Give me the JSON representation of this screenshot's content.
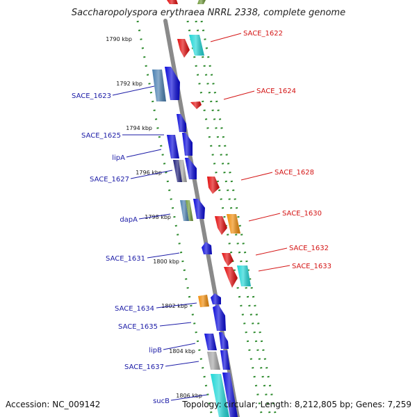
{
  "title": "Saccharopolyspora erythraea NRRL 2338, complete genome",
  "footer": {
    "accession": "Accession: NC_009142",
    "summary": "Topology: circular; Length: 8,212,805 bp; Genes: 7,259"
  },
  "ticks": [
    {
      "label": "1790 kbp"
    },
    {
      "label": "1792 kbp"
    },
    {
      "label": "1794 kbp"
    },
    {
      "label": "1796 kbp"
    },
    {
      "label": "1798 kbp"
    },
    {
      "label": "1800 kbp"
    },
    {
      "label": "1802 kbp"
    },
    {
      "label": "1804 kbp"
    },
    {
      "label": "1806 kbp"
    }
  ],
  "reverse_labels": [
    {
      "name": "SACE_1623"
    },
    {
      "name": "SACE_1625"
    },
    {
      "name": "lipA"
    },
    {
      "name": "SACE_1627"
    },
    {
      "name": "dapA"
    },
    {
      "name": "SACE_1631"
    },
    {
      "name": "SACE_1634"
    },
    {
      "name": "SACE_1635"
    },
    {
      "name": "lipB"
    },
    {
      "name": "SACE_1637"
    },
    {
      "name": "sucB"
    }
  ],
  "forward_labels": [
    {
      "name": "SACE_1622"
    },
    {
      "name": "SACE_1624"
    },
    {
      "name": "SACE_1628"
    },
    {
      "name": "SACE_1630"
    },
    {
      "name": "SACE_1632"
    },
    {
      "name": "SACE_1633"
    }
  ],
  "colors": {
    "blue": "#0b0bd9",
    "red": "#e20d0d",
    "cyan": "#1fd6d6",
    "orange": "#f08c0a",
    "steel": "#4a7fb0",
    "navy": "#1c1c7a",
    "olive": "#6f9a3a",
    "gray": "#a6a6a6",
    "backbone": "#8a8a8a",
    "dots": "#2e8b2e"
  }
}
